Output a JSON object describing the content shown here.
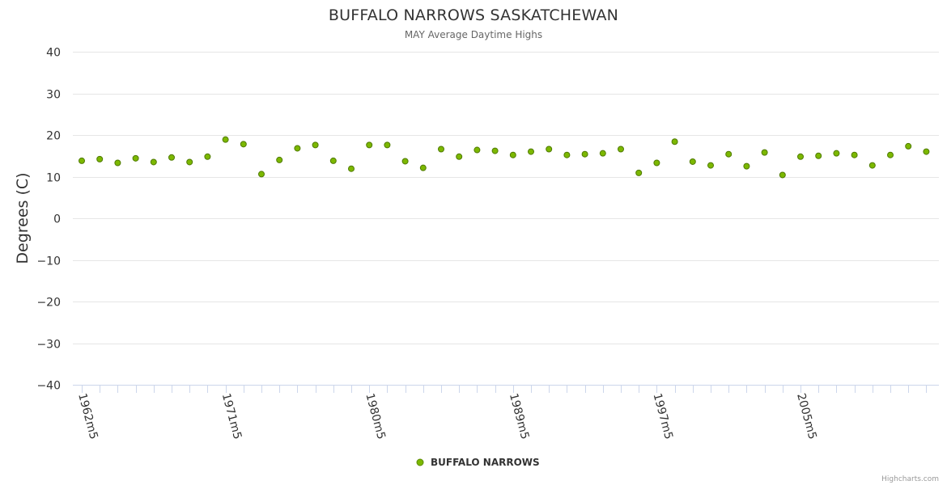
{
  "chart_data": {
    "type": "scatter",
    "title": "BUFFALO NARROWS SASKATCHEWAN",
    "subtitle": "MAY Average Daytime Highs",
    "xlabel": "",
    "ylabel": "Degrees (C)",
    "ylim": [
      -40,
      40
    ],
    "yticks": [
      40,
      30,
      20,
      10,
      0,
      -10,
      -20,
      -30,
      -40
    ],
    "ytick_labels": [
      "40",
      "30",
      "20",
      "10",
      "0",
      "−10",
      "−20",
      "−30",
      "−40"
    ],
    "xticks_labeled": [
      {
        "index": 0,
        "label": "1962m5"
      },
      {
        "index": 8,
        "label": "1971m5"
      },
      {
        "index": 16,
        "label": "1980m5"
      },
      {
        "index": 24,
        "label": "1989m5"
      },
      {
        "index": 32,
        "label": "1997m5"
      },
      {
        "index": 40,
        "label": "2005m5"
      }
    ],
    "grid": true,
    "series": [
      {
        "name": "BUFFALO NARROWS",
        "color": "#7cb800",
        "values": [
          13.8,
          14.2,
          13.3,
          14.4,
          13.5,
          14.6,
          13.5,
          14.8,
          18.9,
          17.8,
          10.6,
          14.0,
          16.8,
          17.6,
          13.8,
          11.9,
          17.6,
          17.6,
          13.7,
          12.1,
          16.6,
          14.8,
          16.4,
          16.2,
          15.2,
          16.0,
          16.6,
          15.2,
          15.4,
          15.6,
          16.6,
          10.9,
          13.3,
          18.4,
          13.6,
          12.7,
          15.4,
          12.5,
          15.8,
          10.4,
          14.8,
          15.0,
          15.6,
          15.2,
          12.7,
          15.2,
          17.3,
          16.0
        ]
      }
    ]
  },
  "credits": "Highcharts.com"
}
